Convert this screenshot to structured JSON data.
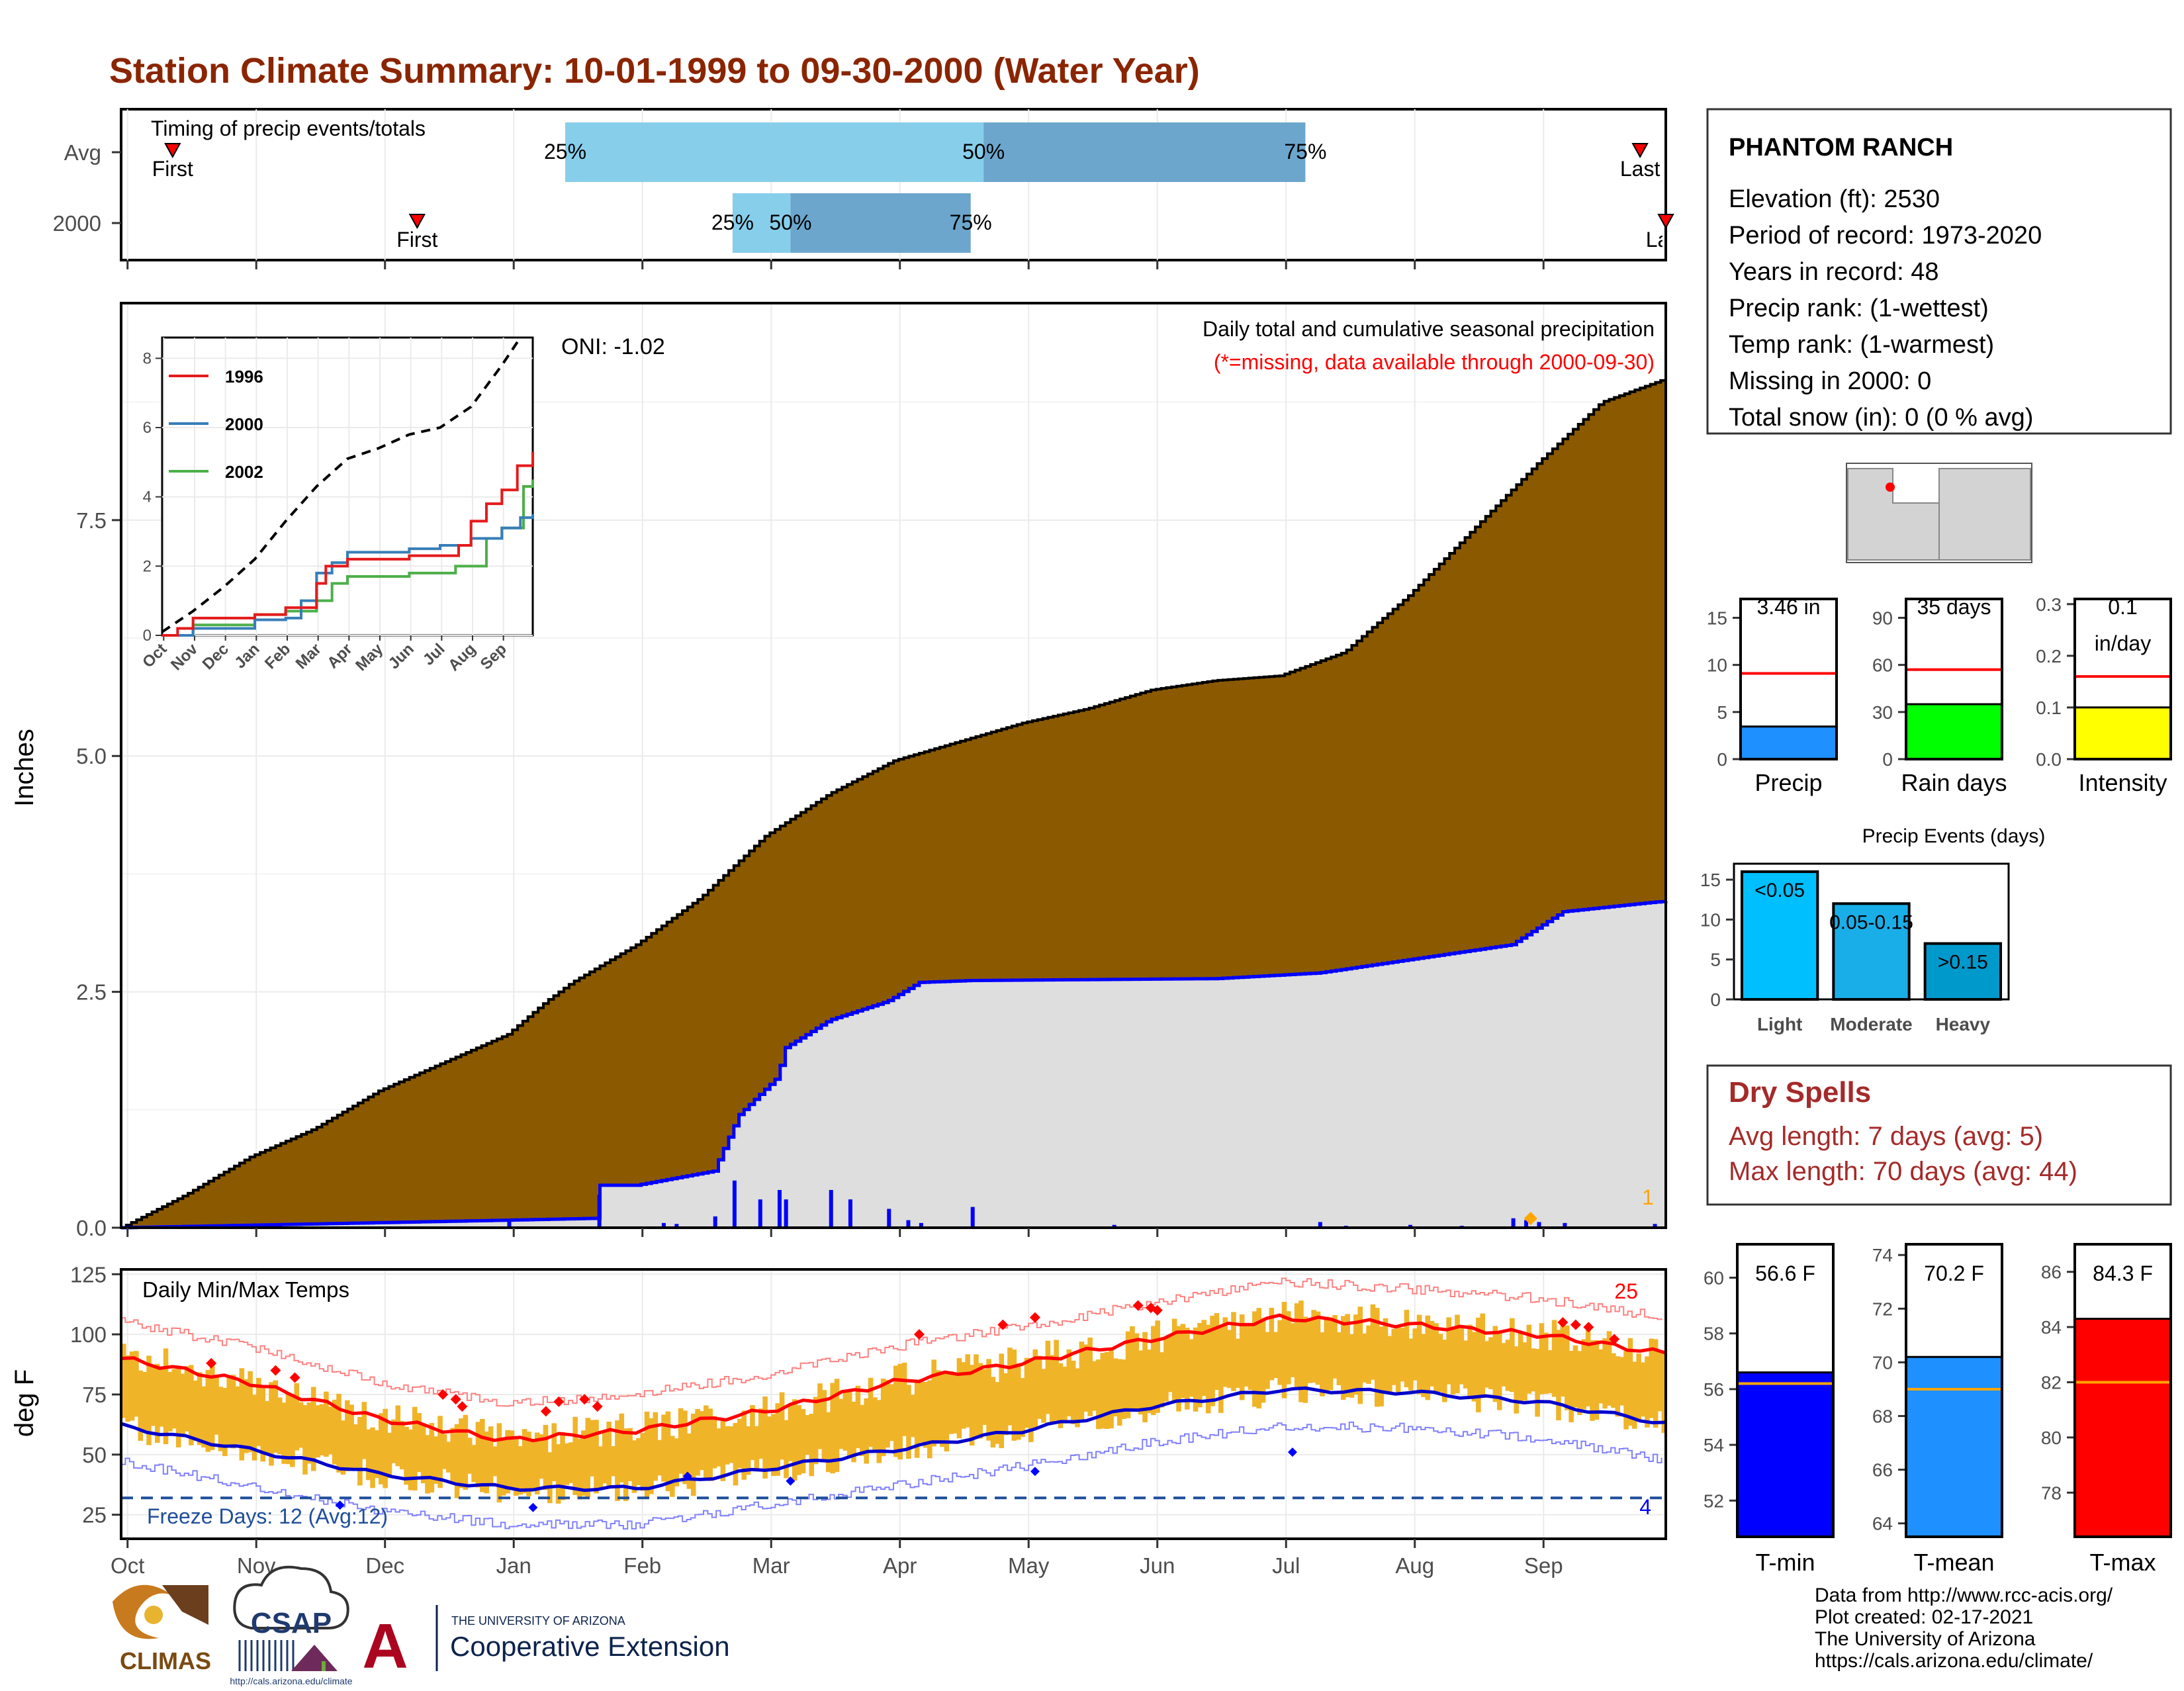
{
  "title": "Station Climate Summary: 10-01-1999 to 09-30-2000 (Water Year)",
  "colors": {
    "title": "#8B2500",
    "cumulative_avg_fill": "#8B5A00",
    "cumulative_obs_fill": "#DEDEDE",
    "obs_line": "#0000FF",
    "daily_bar": "#0000FF",
    "temp_bar": "#F0B429",
    "tmax_avg": "#FF0000",
    "tmin_avg": "#0000CC",
    "record": "#FF0000",
    "freeze_line": "#1F4E9A",
    "ptile_light": "#87CEEB",
    "ptile_dark": "#6CA6CD",
    "precip_bar": "#1E90FF",
    "raindays_bar": "#00FF00",
    "intensity_bar": "#FFFF00",
    "light_bar": "#00BFFF",
    "moderate_bar": "#1AAEE8",
    "heavy_bar": "#0099CC",
    "tmin_bar": "#0000FF",
    "tmean_bar": "#1E90FF",
    "tmax_bar": "#FF0000",
    "avg_line": "#FFA500",
    "dry_spells": "#A52A2A"
  },
  "timing_panel": {
    "label": "Timing of precip events/totals",
    "rows": [
      {
        "name": "Avg",
        "first_label": "First",
        "last_label": "Last",
        "p25_label": "25%",
        "p50_label": "50%",
        "p75_label": "75%",
        "first_month": 0.4,
        "last_month": 11.8,
        "p25_month": 3.45,
        "p50_month": 6.7,
        "p75_month": 9.2
      },
      {
        "name": "2000",
        "first_label": "First",
        "last_label": "Last",
        "p25_label": "25%",
        "p50_label": "50%",
        "p75_label": "75%",
        "first_month": 2.3,
        "last_month": 12.0,
        "p25_month": 4.75,
        "p50_month": 5.2,
        "p75_month": 6.6
      }
    ]
  },
  "precip_panel": {
    "ylabel": "Inches",
    "y_ticks": [
      "0.0",
      "2.5",
      "5.0",
      "7.5"
    ],
    "caption": "Daily total and cumulative seasonal precipitation",
    "missing_note": "(*=missing, data available through 2000-09-30)",
    "oni": "ONI: -1.02",
    "corner_count": "1"
  },
  "inset": {
    "y_ticks": [
      "0",
      "2",
      "4",
      "6",
      "8"
    ],
    "x_ticks": [
      "Oct",
      "Nov",
      "Dec",
      "Jan",
      "Feb",
      "Mar",
      "Apr",
      "May",
      "Jun",
      "Jul",
      "Aug",
      "Sep"
    ],
    "legend": [
      {
        "name": "1996",
        "color": "#E41A1C"
      },
      {
        "name": "2000",
        "color": "#377EB8"
      },
      {
        "name": "2002",
        "color": "#4DAF4A"
      }
    ]
  },
  "temp_panel": {
    "ylabel": "deg F",
    "caption": "Daily Min/Max Temps",
    "y_ticks": [
      "25",
      "50",
      "75",
      "100",
      "125"
    ],
    "freeze_label": "Freeze Days: 12 (Avg:12)",
    "record_high_count": "25",
    "record_low_count": "4"
  },
  "x_months": [
    "Oct",
    "Nov",
    "Dec",
    "Jan",
    "Feb",
    "Mar",
    "Apr",
    "May",
    "Jun",
    "Jul",
    "Aug",
    "Sep"
  ],
  "station": {
    "name": "PHANTOM RANCH",
    "lines": [
      "Elevation (ft): 2530",
      "Period of record: 1973-2020",
      "Years in record: 48",
      "Precip rank:  (1-wettest)",
      "Temp rank:  (1-warmest)",
      "Missing in 2000: 0",
      "Total snow (in): 0 (0 % avg)"
    ]
  },
  "summary_bars": [
    {
      "label": "Precip",
      "value_label": "3.46 in",
      "value": 3.46,
      "avg": 9.1,
      "ymax": 17,
      "ticks": [
        "0",
        "5",
        "10",
        "15"
      ],
      "tick_values": [
        0,
        5,
        10,
        15
      ],
      "color_key": "precip_bar"
    },
    {
      "label": "Rain days",
      "value_label": "35 days",
      "value": 35,
      "avg": 57,
      "ymax": 102,
      "ticks": [
        "0",
        "30",
        "60",
        "90"
      ],
      "tick_values": [
        0,
        30,
        60,
        90
      ],
      "color_key": "raindays_bar"
    },
    {
      "label": "Intensity",
      "value_label": "0.1\nin/day",
      "value": 0.1,
      "avg": 0.16,
      "ymax": 0.31,
      "ticks": [
        "0.0",
        "0.1",
        "0.2",
        "0.3"
      ],
      "tick_values": [
        0,
        0.1,
        0.2,
        0.3
      ],
      "color_key": "intensity_bar"
    }
  ],
  "precip_events": {
    "title": "Precip Events (days)",
    "ticks": [
      "0",
      "5",
      "10",
      "15"
    ],
    "bars": [
      {
        "category": "Light",
        "value_label": "<0.05",
        "value": 16,
        "color_key": "light_bar"
      },
      {
        "category": "Moderate",
        "value_label": "0.05-0.15",
        "value": 12,
        "color_key": "moderate_bar"
      },
      {
        "category": "Heavy",
        "value_label": ">0.15",
        "value": 7,
        "color_key": "heavy_bar"
      }
    ]
  },
  "dry_spells": {
    "title": "Dry Spells",
    "avg_length": "Avg length: 7 days (avg: 5)",
    "max_length": "Max length: 70 days (avg: 44)"
  },
  "temp_bars": [
    {
      "label": "T-min",
      "value_label": "56.6 F",
      "value": 56.6,
      "avg": 56.2,
      "ymin": 50.7,
      "ymax": 61.2,
      "ticks": [
        "52",
        "54",
        "56",
        "58",
        "60"
      ],
      "tick_values": [
        52,
        54,
        56,
        58,
        60
      ],
      "color_key": "tmin_bar"
    },
    {
      "label": "T-mean",
      "value_label": "70.2 F",
      "value": 70.2,
      "avg": 69.0,
      "ymin": 63.5,
      "ymax": 74.4,
      "ticks": [
        "64",
        "66",
        "68",
        "70",
        "72",
        "74"
      ],
      "tick_values": [
        64,
        66,
        68,
        70,
        72,
        74
      ],
      "color_key": "tmean_bar"
    },
    {
      "label": "T-max",
      "value_label": "84.3 F",
      "value": 84.3,
      "avg": 82.0,
      "ymin": 76.4,
      "ymax": 87.0,
      "ticks": [
        "78",
        "80",
        "82",
        "84",
        "86"
      ],
      "tick_values": [
        78,
        80,
        82,
        84,
        86
      ],
      "color_key": "tmax_bar"
    }
  ],
  "credits": [
    "Data from http://www.rcc-acis.org/",
    "Plot created: 02-17-2021",
    "The University of Arizona",
    "https://cals.arizona.edu/climate/"
  ],
  "logos": {
    "climas": "CLIMAS",
    "csap": "CSAP",
    "csap_url": "http://cals.arizona.edu/climate",
    "ua_top": "THE UNIVERSITY OF ARIZONA",
    "ua_bottom": "Cooperative Extension",
    "ua_letter": "A"
  },
  "chart_data": [
    {
      "type": "area",
      "title": "Daily total and cumulative seasonal precipitation",
      "ylabel": "Inches",
      "ylim": [
        0,
        9.8
      ],
      "x_unit": "month index from Oct 1 (0-12)",
      "series": [
        {
          "name": "avg",
          "x": [
            0,
            0.5,
            1,
            1.5,
            2,
            2.5,
            3,
            3.3,
            3.5,
            4,
            4.5,
            5,
            5.5,
            6,
            6.5,
            7,
            7.5,
            8,
            8.5,
            9,
            9.5,
            10,
            10.5,
            11,
            11.5,
            12
          ],
          "values": [
            0,
            0.35,
            0.75,
            1.05,
            1.45,
            1.75,
            2.05,
            2.4,
            2.6,
            3.0,
            3.5,
            4.15,
            4.6,
            4.95,
            5.15,
            5.35,
            5.5,
            5.7,
            5.8,
            5.85,
            6.1,
            6.7,
            7.4,
            8.1,
            8.75,
            9.0
          ]
        },
        {
          "name": "2000",
          "x": [
            0,
            3.0,
            3.7,
            3.72,
            4.0,
            4.6,
            4.8,
            5.1,
            5.15,
            5.5,
            5.95,
            6.2,
            6.6,
            8.5,
            9.3,
            10.0,
            10.8,
            11.2,
            11.9,
            12
          ],
          "values": [
            0,
            0.08,
            0.1,
            0.45,
            0.45,
            0.6,
            1.2,
            1.6,
            1.9,
            2.2,
            2.4,
            2.6,
            2.62,
            2.64,
            2.7,
            2.84,
            3.0,
            3.35,
            3.45,
            3.46
          ]
        }
      ]
    },
    {
      "type": "line",
      "title": "Daily Min/Max Temps",
      "ylabel": "deg F",
      "ylim": [
        15,
        127
      ],
      "x_unit": "month index from Oct 1 (0-12)",
      "series": [
        {
          "name": "Tmax avg",
          "x": [
            0,
            1,
            2,
            3,
            4,
            5,
            6,
            7,
            8,
            9,
            10,
            11,
            12
          ],
          "values": [
            90,
            80,
            65,
            56,
            60,
            68,
            80,
            88,
            98,
            107,
            104,
            100,
            92
          ]
        },
        {
          "name": "Tmin avg",
          "x": [
            0,
            1,
            2,
            3,
            4,
            5,
            6,
            7,
            8,
            9,
            10,
            11,
            12
          ],
          "values": [
            62,
            52,
            42,
            36,
            36,
            44,
            52,
            60,
            70,
            77,
            76,
            72,
            63
          ]
        }
      ],
      "freeze_line": 32
    }
  ]
}
